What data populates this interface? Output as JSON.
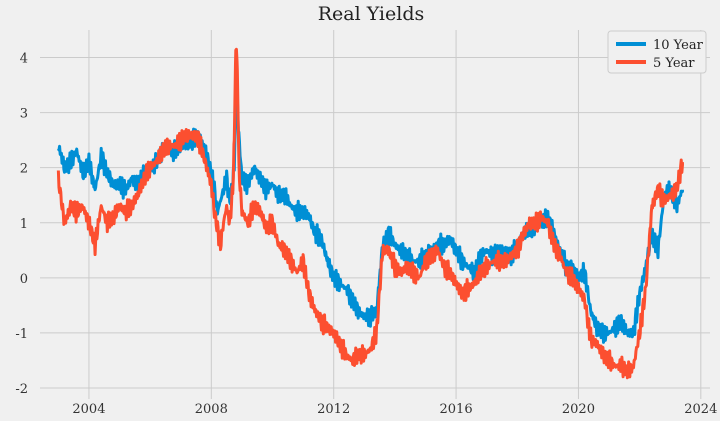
{
  "chart_data": {
    "type": "line",
    "title": "Real Yields",
    "xlabel": "",
    "ylabel": "",
    "xlim": [
      2002.4,
      2024.3
    ],
    "ylim": [
      -2.2,
      4.5
    ],
    "x_ticks": [
      2004,
      2008,
      2012,
      2016,
      2020,
      2024
    ],
    "y_ticks": [
      -2,
      -1,
      0,
      1,
      2,
      3,
      4
    ],
    "grid": true,
    "legend": "top-right",
    "series": [
      {
        "name": "10 Year",
        "color": "#008fd5",
        "x": [
          2003.0,
          2003.2,
          2003.4,
          2003.6,
          2003.8,
          2004.0,
          2004.2,
          2004.4,
          2004.6,
          2004.8,
          2005.0,
          2005.2,
          2005.4,
          2005.6,
          2005.8,
          2006.0,
          2006.2,
          2006.4,
          2006.6,
          2006.8,
          2007.0,
          2007.2,
          2007.4,
          2007.6,
          2007.8,
          2008.0,
          2008.1,
          2008.2,
          2008.3,
          2008.4,
          2008.5,
          2008.6,
          2008.7,
          2008.75,
          2008.8,
          2008.85,
          2008.9,
          2009.0,
          2009.2,
          2009.4,
          2009.6,
          2009.8,
          2010.0,
          2010.2,
          2010.4,
          2010.6,
          2010.8,
          2011.0,
          2011.2,
          2011.4,
          2011.6,
          2011.8,
          2012.0,
          2012.2,
          2012.4,
          2012.6,
          2012.8,
          2013.0,
          2013.2,
          2013.4,
          2013.6,
          2013.8,
          2014.0,
          2014.2,
          2014.4,
          2014.6,
          2014.8,
          2015.0,
          2015.2,
          2015.4,
          2015.6,
          2015.8,
          2016.0,
          2016.2,
          2016.4,
          2016.6,
          2016.8,
          2017.0,
          2017.2,
          2017.4,
          2017.6,
          2017.8,
          2018.0,
          2018.2,
          2018.4,
          2018.6,
          2018.8,
          2019.0,
          2019.2,
          2019.4,
          2019.6,
          2019.8,
          2020.0,
          2020.2,
          2020.4,
          2020.6,
          2020.8,
          2021.0,
          2021.2,
          2021.4,
          2021.6,
          2021.8,
          2022.0,
          2022.2,
          2022.4,
          2022.6,
          2022.8,
          2023.0,
          2023.2,
          2023.4
        ],
        "values": [
          2.4,
          2.0,
          2.1,
          2.3,
          1.9,
          2.1,
          1.6,
          2.2,
          1.9,
          1.7,
          1.7,
          1.6,
          1.8,
          1.7,
          1.9,
          2.0,
          2.1,
          2.3,
          2.3,
          2.3,
          2.4,
          2.4,
          2.5,
          2.6,
          2.3,
          1.9,
          1.6,
          1.2,
          1.4,
          1.6,
          1.8,
          1.4,
          1.7,
          2.1,
          2.9,
          3.1,
          2.6,
          1.8,
          1.7,
          2.0,
          1.8,
          1.6,
          1.7,
          1.5,
          1.5,
          1.3,
          1.2,
          1.2,
          1.1,
          0.8,
          0.7,
          0.3,
          0.0,
          -0.1,
          -0.2,
          -0.4,
          -0.6,
          -0.7,
          -0.7,
          -0.6,
          0.6,
          0.8,
          0.6,
          0.5,
          0.4,
          0.3,
          0.3,
          0.4,
          0.5,
          0.6,
          0.6,
          0.7,
          0.5,
          0.3,
          0.2,
          0.1,
          0.4,
          0.5,
          0.4,
          0.5,
          0.5,
          0.4,
          0.6,
          0.8,
          0.9,
          0.9,
          1.0,
          1.1,
          0.8,
          0.5,
          0.2,
          0.2,
          0.0,
          0.1,
          -0.6,
          -0.9,
          -1.0,
          -1.0,
          -0.9,
          -0.8,
          -1.0,
          -1.0,
          -0.3,
          0.2,
          0.8,
          0.5,
          1.5,
          1.6,
          1.3,
          1.6
        ]
      },
      {
        "name": "5 Year",
        "color": "#fc4f30",
        "x": [
          2003.0,
          2003.2,
          2003.4,
          2003.6,
          2003.8,
          2004.0,
          2004.2,
          2004.4,
          2004.6,
          2004.8,
          2005.0,
          2005.2,
          2005.4,
          2005.6,
          2005.8,
          2006.0,
          2006.2,
          2006.4,
          2006.6,
          2006.8,
          2007.0,
          2007.2,
          2007.4,
          2007.6,
          2007.8,
          2008.0,
          2008.1,
          2008.2,
          2008.3,
          2008.4,
          2008.5,
          2008.6,
          2008.7,
          2008.75,
          2008.8,
          2008.85,
          2008.9,
          2009.0,
          2009.2,
          2009.4,
          2009.6,
          2009.8,
          2010.0,
          2010.2,
          2010.4,
          2010.6,
          2010.8,
          2011.0,
          2011.2,
          2011.4,
          2011.6,
          2011.8,
          2012.0,
          2012.2,
          2012.4,
          2012.6,
          2012.8,
          2013.0,
          2013.2,
          2013.4,
          2013.6,
          2013.8,
          2014.0,
          2014.2,
          2014.4,
          2014.6,
          2014.8,
          2015.0,
          2015.2,
          2015.4,
          2015.6,
          2015.8,
          2016.0,
          2016.2,
          2016.4,
          2016.6,
          2016.8,
          2017.0,
          2017.2,
          2017.4,
          2017.6,
          2017.8,
          2018.0,
          2018.2,
          2018.4,
          2018.6,
          2018.8,
          2019.0,
          2019.2,
          2019.4,
          2019.6,
          2019.8,
          2020.0,
          2020.2,
          2020.4,
          2020.6,
          2020.8,
          2021.0,
          2021.2,
          2021.4,
          2021.6,
          2021.8,
          2022.0,
          2022.2,
          2022.4,
          2022.6,
          2022.8,
          2023.0,
          2023.2,
          2023.4
        ],
        "values": [
          1.8,
          1.0,
          1.3,
          1.2,
          1.3,
          1.0,
          0.6,
          1.3,
          1.0,
          1.1,
          1.3,
          1.2,
          1.3,
          1.5,
          1.8,
          2.0,
          2.1,
          2.3,
          2.4,
          2.4,
          2.5,
          2.6,
          2.6,
          2.5,
          2.1,
          1.7,
          1.2,
          0.9,
          0.6,
          1.0,
          1.3,
          1.0,
          1.6,
          2.5,
          4.2,
          3.8,
          2.0,
          1.2,
          1.0,
          1.3,
          1.2,
          0.9,
          1.0,
          0.6,
          0.5,
          0.3,
          0.1,
          0.3,
          -0.3,
          -0.6,
          -0.8,
          -0.9,
          -1.0,
          -1.2,
          -1.4,
          -1.5,
          -1.4,
          -1.4,
          -1.3,
          -1.0,
          0.5,
          0.5,
          0.2,
          0.1,
          0.2,
          0.1,
          0.0,
          0.3,
          0.4,
          0.5,
          0.2,
          0.1,
          -0.1,
          -0.3,
          -0.2,
          -0.1,
          0.1,
          0.2,
          0.3,
          0.3,
          0.3,
          0.4,
          0.5,
          0.8,
          1.0,
          1.0,
          1.1,
          1.0,
          0.6,
          0.4,
          0.1,
          0.0,
          -0.2,
          -0.4,
          -1.1,
          -1.2,
          -1.4,
          -1.5,
          -1.6,
          -1.6,
          -1.7,
          -1.6,
          -1.0,
          -0.2,
          1.3,
          1.6,
          1.4,
          1.5,
          1.6,
          2.1
        ]
      }
    ]
  }
}
